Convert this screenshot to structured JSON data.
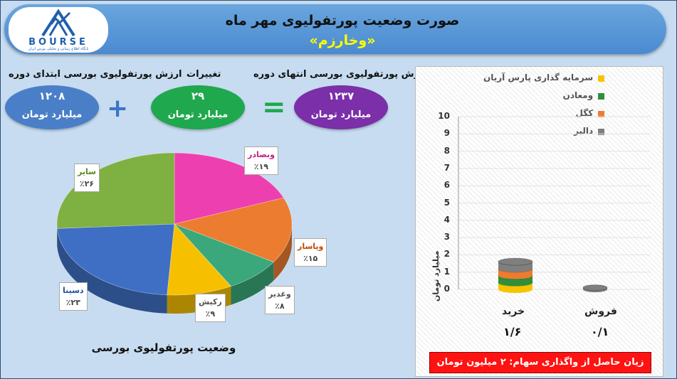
{
  "logo": {
    "word": "BOURSE",
    "sub": "پایگاه اطلاع رسانی و تحلیلی بورس ایران"
  },
  "header": {
    "title": "صورت وضعیت پورتفولیوی مهر ماه",
    "subtitle": "«وخارزم»"
  },
  "summary": {
    "start": {
      "label": "ارزش پورتفولیوی بورسی ابتدای دوره",
      "value": "۱۲۰۸",
      "unit": "میلیارد تومان",
      "color": "#4a7fc8"
    },
    "change": {
      "label": "تغییرات",
      "value": "۲۹",
      "unit": "میلیارد تومان",
      "color": "#1fa84d"
    },
    "end": {
      "label": "ارزش پورتفولیوی بورسی انتهای دوره",
      "value": "۱۲۳۷",
      "unit": "میلیارد تومان",
      "color": "#7b2fa8"
    },
    "plus": "+",
    "equals": "="
  },
  "pie_title": "وضعیت پورتفولیوی بورسی",
  "chart_data": [
    {
      "type": "pie",
      "title": "وضعیت پورتفولیوی بورسی",
      "slices": [
        {
          "label": "وبصادر",
          "value": 19,
          "display": "٪۱۹",
          "color": "#ee3fb0"
        },
        {
          "label": "وپاسار",
          "value": 15,
          "display": "٪۱۵",
          "color": "#ec7c30"
        },
        {
          "label": "وغدیر",
          "value": 8,
          "display": "٪۸",
          "color": "#3aa87a"
        },
        {
          "label": "رکیش",
          "value": 9,
          "display": "٪۹",
          "color": "#f6c000"
        },
        {
          "label": "دسینا",
          "value": 23,
          "display": "٪۲۳",
          "color": "#3f6fc4"
        },
        {
          "label": "سایر",
          "value": 26,
          "display": "٪۲۶",
          "color": "#7fb042"
        }
      ]
    },
    {
      "type": "bar",
      "categories": [
        "خرید",
        "فروش"
      ],
      "value_labels": [
        "۱/۶",
        "۰/۱"
      ],
      "series": [
        {
          "name": "سرمایه گذاری پارس آریان",
          "color": "#f5c400",
          "values": [
            0.4,
            0
          ]
        },
        {
          "name": "ومعادن",
          "color": "#2f8f3a",
          "values": [
            0.4,
            0
          ]
        },
        {
          "name": "کگل",
          "color": "#ec7c30",
          "values": [
            0.4,
            0
          ]
        },
        {
          "name": "دالبر",
          "color": "#7f7f7f",
          "values": [
            0.4,
            0.1
          ]
        }
      ],
      "ylabel": "میلیارد تومان",
      "ylim": [
        0,
        10
      ],
      "yticks": [
        0,
        1,
        2,
        3,
        4,
        5,
        6,
        7,
        8,
        9,
        10
      ]
    }
  ],
  "banner": "زیان حاصل از واگذاری سهام: ۲ میلیون تومان"
}
